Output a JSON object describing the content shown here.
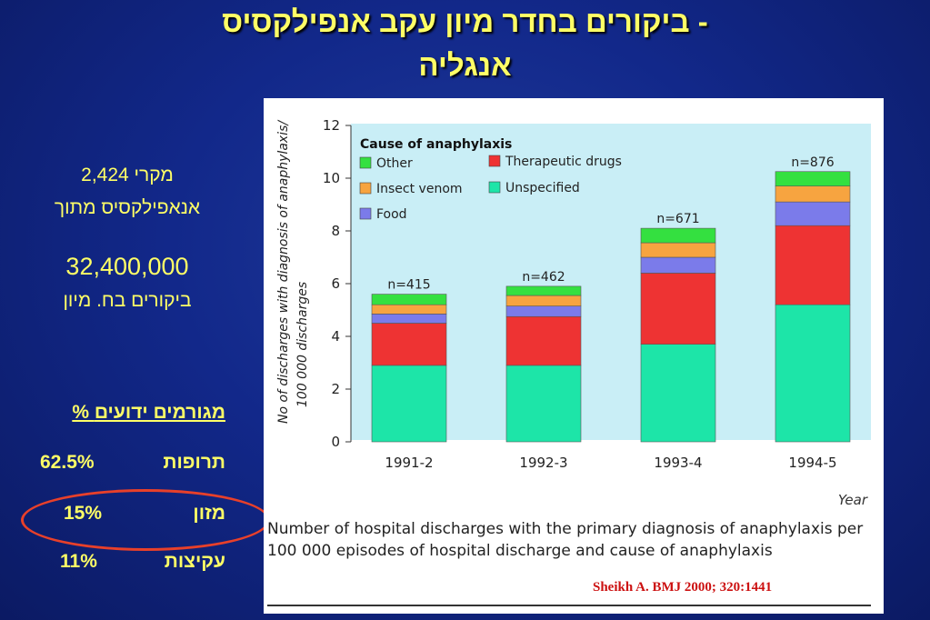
{
  "title": {
    "line1": "ביקורים בחדר מיון עקב אנפילקסיס -",
    "line2": "אנגליה"
  },
  "stats": {
    "cases": "2,424 מקרי",
    "cases_desc": "אנאפילקסיס מתוך",
    "visits": "32,400,000",
    "visits_desc": "ביקורים בח. מיון"
  },
  "triggers": {
    "header": "% מגורמים ידועים",
    "rows": [
      {
        "label": "תרופות",
        "value": "62.5%"
      },
      {
        "label": "מזון",
        "value": "15%"
      },
      {
        "label": "עקיצות",
        "value": "11%"
      }
    ]
  },
  "chart_data": {
    "type": "bar",
    "stacked": true,
    "categories": [
      "1991-2",
      "1992-3",
      "1993-4",
      "1994-5"
    ],
    "annotations": [
      "n=415",
      "n=462",
      "n=671",
      "n=876"
    ],
    "ylabel": "No of discharges with diagnosis of anaphylaxis/ 100 000 discharges",
    "xlabel": "Year",
    "ylim": [
      0,
      12
    ],
    "yticks": [
      0,
      2,
      4,
      6,
      8,
      10,
      12
    ],
    "legend_title": "Cause of anaphylaxis",
    "legend_position": "top-left",
    "series": [
      {
        "name": "Unspecified",
        "color": "#1de5a8",
        "values": [
          2.9,
          2.9,
          3.7,
          5.2
        ]
      },
      {
        "name": "Therapeutic drugs",
        "color": "#ee3333",
        "values": [
          1.6,
          1.85,
          2.7,
          3.0
        ]
      },
      {
        "name": "Food",
        "color": "#7b7bea",
        "values": [
          0.35,
          0.4,
          0.6,
          0.9
        ]
      },
      {
        "name": "Insect venom",
        "color": "#f7a440",
        "values": [
          0.35,
          0.4,
          0.55,
          0.6
        ]
      },
      {
        "name": "Other",
        "color": "#34e040",
        "values": [
          0.4,
          0.35,
          0.55,
          0.55
        ]
      }
    ],
    "legend_order": [
      "Other",
      "Therapeutic drugs",
      "Insect venom",
      "Unspecified",
      "Food"
    ]
  },
  "caption": "Number of hospital discharges with the primary diagnosis of anaphylaxis per 100 000 episodes of hospital discharge and cause of anaphylaxis",
  "citation": "Sheikh A. BMJ 2000; 320:1441"
}
